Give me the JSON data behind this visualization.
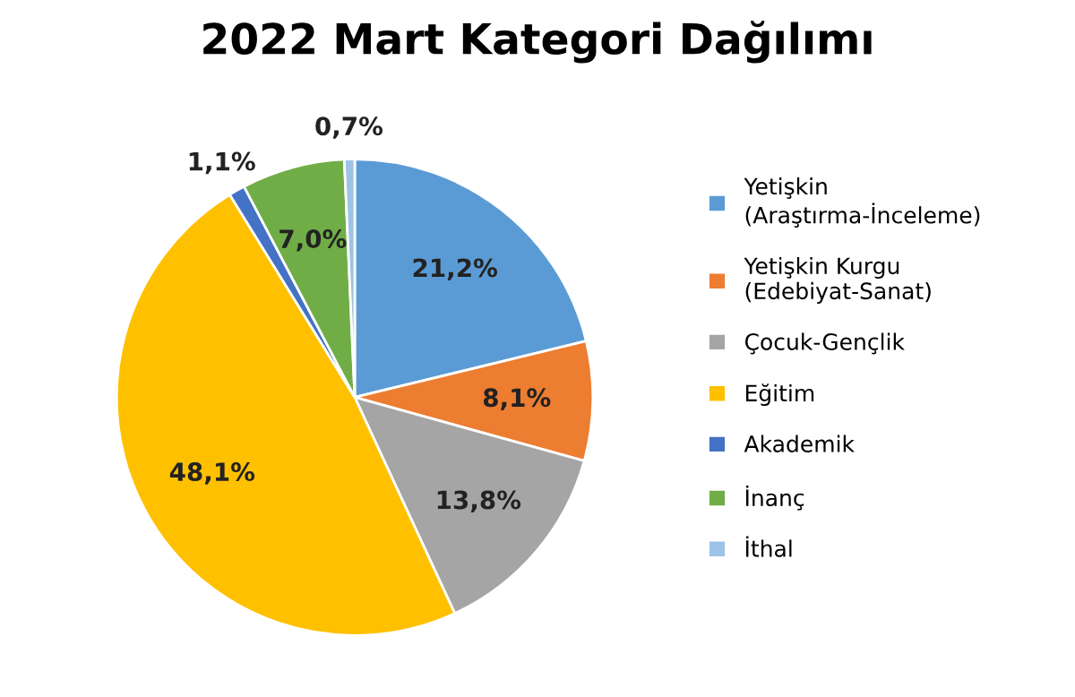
{
  "chart_data": {
    "type": "pie",
    "title": "2022 Mart Kategori Dağılımı",
    "categories": [
      "Yetişkin\n(Araştırma-İnceleme)",
      "Yetişkin Kurgu\n(Edebiyat-Sanat)",
      "Çocuk-Gençlik",
      "Eğitim",
      "Akademik",
      "İnanç",
      "İthal"
    ],
    "values": [
      21.2,
      8.1,
      13.8,
      48.1,
      1.1,
      7.0,
      0.7
    ],
    "colors": [
      "#5b9bd5",
      "#ed7d31",
      "#a5a5a5",
      "#ffc000",
      "#4472c4",
      "#70ad47",
      "#9dc3e6"
    ],
    "value_labels": [
      "21,2%",
      "8,1%",
      "13,8%",
      "48,1%",
      "1,1%",
      "7,0%",
      "0,7%"
    ],
    "legend": "right"
  }
}
